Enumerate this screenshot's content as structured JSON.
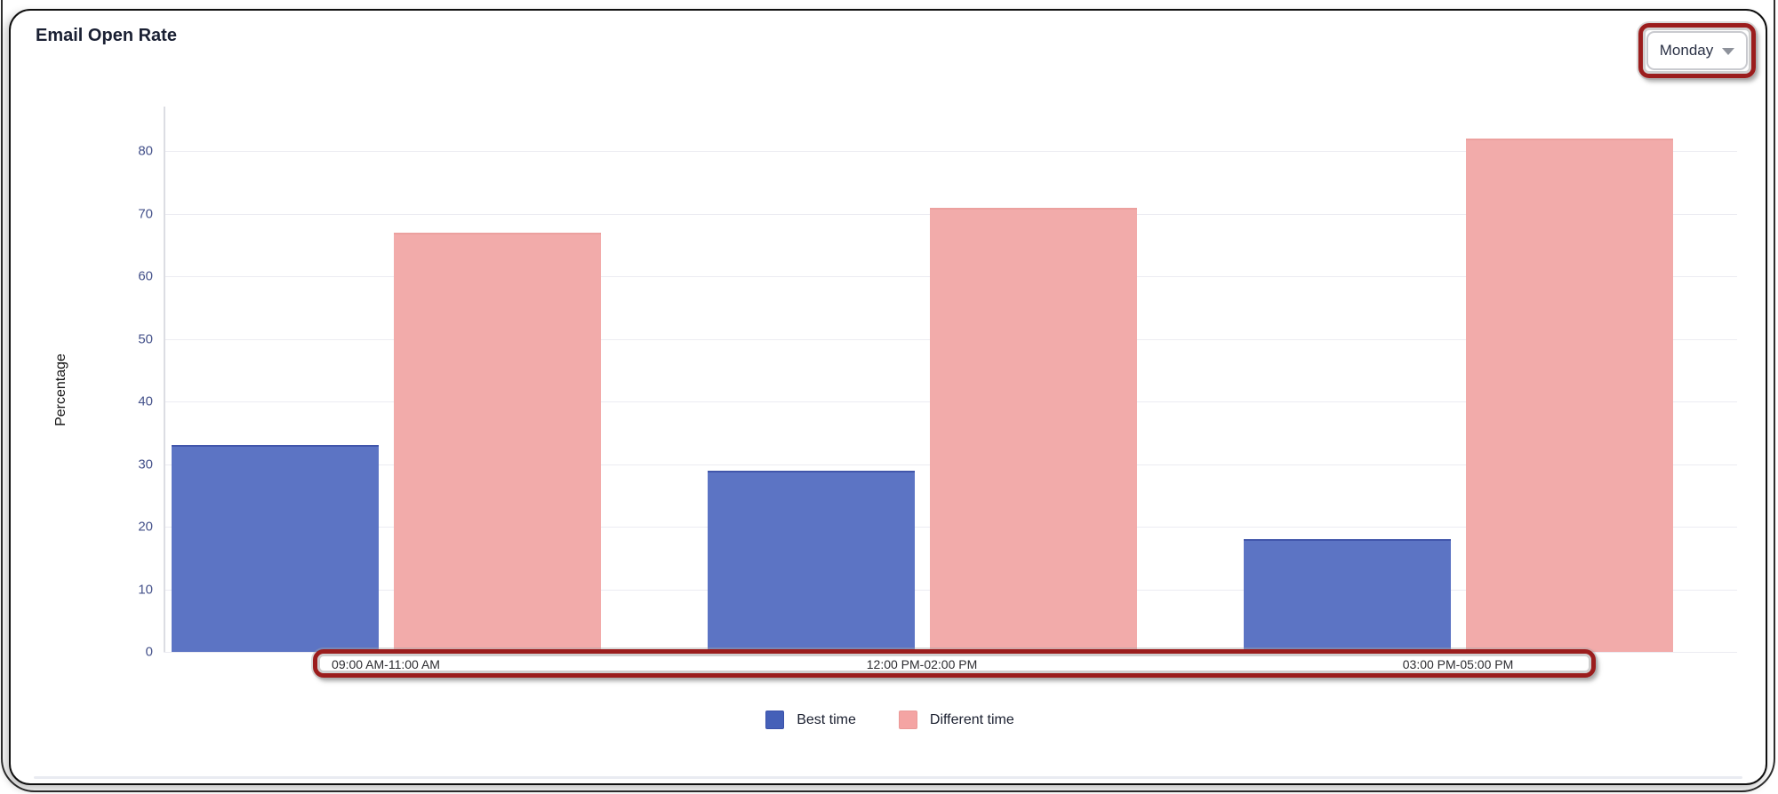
{
  "card": {
    "title": "Email Open Rate"
  },
  "dropdown": {
    "value": "Monday"
  },
  "chart_data": {
    "type": "bar",
    "title": "Email Open Rate",
    "categories": [
      "09:00 AM-11:00 AM",
      "12:00 PM-02:00 PM",
      "03:00 PM-05:00 PM"
    ],
    "series": [
      {
        "name": "Best time",
        "values": [
          33,
          29,
          18
        ],
        "color": "#5c74c4",
        "border_color": "#4156ab",
        "legend_color": "#4560b8",
        "legend_border": "#3a51aa"
      },
      {
        "name": "Different time",
        "values": [
          67,
          71,
          82
        ],
        "color": "#f2abaa",
        "border_color": "#eca19f",
        "legend_color": "#f4a4a3",
        "legend_border": "#eb9a98"
      }
    ],
    "xlabel": "",
    "ylabel": "Percentage",
    "ylim": [
      0,
      85
    ],
    "yticks": [
      0,
      10,
      20,
      30,
      40,
      50,
      60,
      70,
      80
    ],
    "grid": true,
    "legend_position": "bottom"
  },
  "annotations": {
    "color": "#9b1d1d",
    "highlighted_elements": [
      "day-dropdown",
      "x-axis-labels"
    ]
  }
}
